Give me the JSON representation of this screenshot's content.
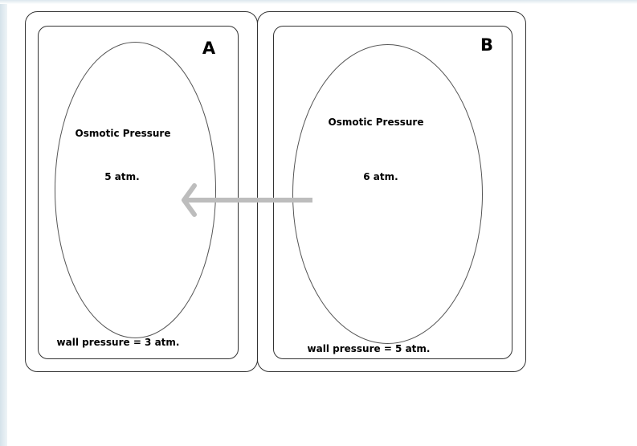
{
  "cells": [
    {
      "letter": "A",
      "osmotic_label": "Osmotic Pressure",
      "osmotic_value": "5 atm.",
      "wall_pressure": "wall pressure = 3 atm."
    },
    {
      "letter": "B",
      "osmotic_label": "Osmotic Pressure",
      "osmotic_value": "6 atm.",
      "wall_pressure": "wall pressure = 5 atm."
    }
  ],
  "colors": {
    "outline": "#333333",
    "arrow": "#bdbdbd",
    "background": "#ffffff"
  }
}
